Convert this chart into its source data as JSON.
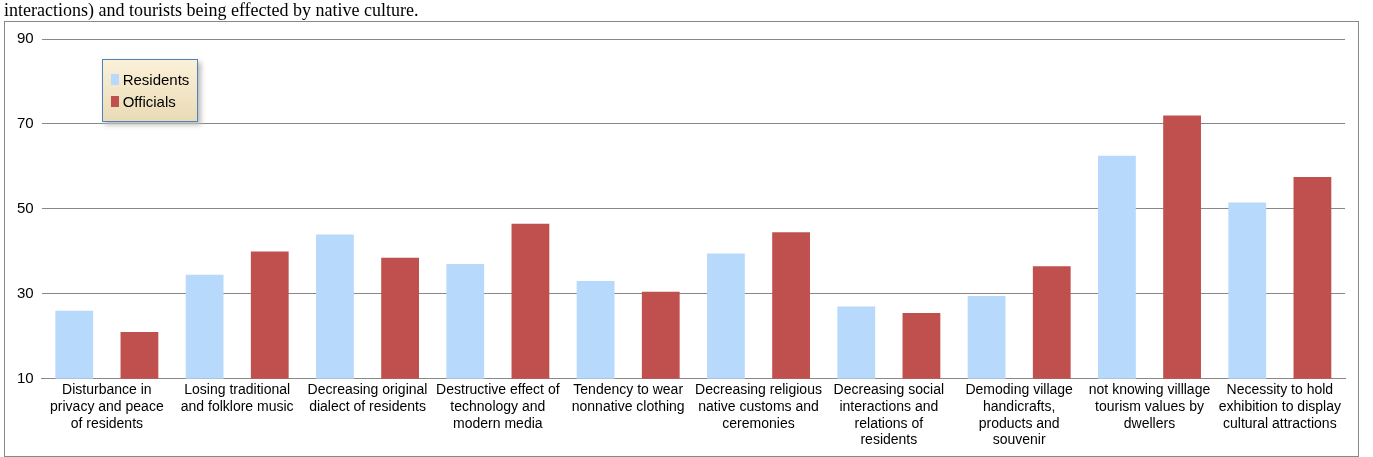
{
  "chart_data": {
    "type": "bar",
    "title": "interactions) and tourists being effected by native culture.",
    "categories": [
      "Disturbance in privacy and peace of residents",
      "Losing traditional and folklore music",
      "Decreasing original dialect of residents",
      "Destructive effect of technology and modern media",
      "Tendency to wear nonnative clothing",
      "Decreasing religious native customs and ceremonies",
      "Decreasing social interactions and relations of residents",
      "Demoding village handicrafts, products and souvenir",
      "not knowing villlage tourism values by dwellers",
      "Necessity to hold exhibition to display cultural attractions"
    ],
    "series": [
      {
        "name": "Residents",
        "color": "#b7d9fb",
        "values": [
          26,
          34.5,
          44,
          37,
          33,
          39.5,
          27,
          29.5,
          62.5,
          51.5
        ]
      },
      {
        "name": "Officials",
        "color": "#c0504d",
        "values": [
          21,
          40,
          38.5,
          46.5,
          30.5,
          44.5,
          25.5,
          36.5,
          72,
          57.5
        ]
      }
    ],
    "ylim": [
      10,
      90
    ],
    "yticks": [
      10,
      30,
      50,
      70,
      90
    ],
    "grid": "y",
    "legend": "top left"
  }
}
